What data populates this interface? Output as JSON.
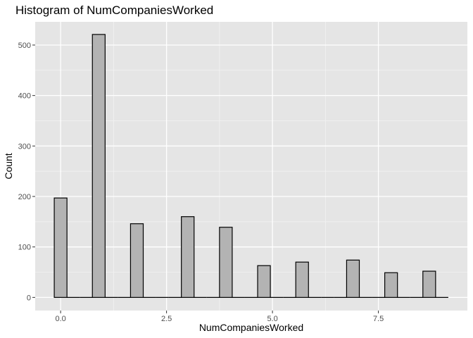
{
  "chart_data": {
    "type": "bar",
    "title": "Histogram of NumCompaniesWorked",
    "xlabel": "NumCompaniesWorked",
    "ylabel": "Count",
    "xlim": [
      -0.6,
      9.6
    ],
    "ylim": [
      -26,
      546
    ],
    "x_ticks": [
      0,
      2.5,
      5,
      7.5
    ],
    "x_tick_labels": [
      "0.0",
      "2.5",
      "5.0",
      "7.5"
    ],
    "y_ticks": [
      0,
      100,
      200,
      300,
      400,
      500
    ],
    "y_tick_labels": [
      "0",
      "100",
      "200",
      "300",
      "400",
      "500"
    ],
    "bin_width": 0.3,
    "bin_centers": [
      0,
      0.3,
      0.6,
      0.9,
      1.2,
      1.5,
      1.8,
      2.1,
      2.4,
      2.7,
      3.0,
      3.3,
      3.6,
      3.9,
      4.2,
      4.5,
      4.8,
      5.1,
      5.4,
      5.7,
      6.0,
      6.3,
      6.6,
      6.9,
      7.2,
      7.5,
      7.8,
      8.1,
      8.4,
      8.7,
      9.0
    ],
    "values": [
      197,
      0,
      0,
      521,
      0,
      0,
      146,
      0,
      0,
      0,
      160,
      0,
      0,
      139,
      0,
      0,
      63,
      0,
      0,
      70,
      0,
      0,
      0,
      74,
      0,
      0,
      49,
      0,
      0,
      52,
      0
    ],
    "grid": true,
    "colors": {
      "panel_background": "#e5e5e5",
      "grid_major": "#ffffff",
      "grid_minor": "#f2f2f2",
      "bar_fill": "#b3b3b3",
      "bar_stroke": "#000000"
    }
  }
}
